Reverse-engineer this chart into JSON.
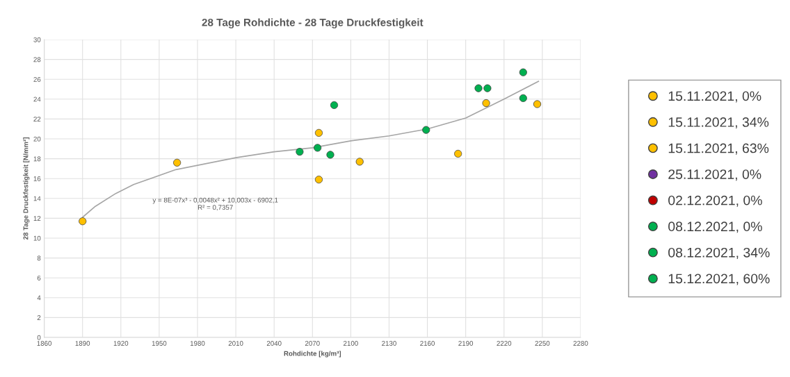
{
  "chart_data": {
    "type": "scatter",
    "title": "28 Tage Rohdichte - 28 Tage Druckfestigkeit",
    "xlabel": "Rohdichte [kg/m³]",
    "ylabel": "28 Tage Druckfestigkeit [N/mm²]",
    "xlim": [
      1860,
      2280
    ],
    "xticks": [
      1860,
      1890,
      1920,
      1950,
      1980,
      2010,
      2040,
      2070,
      2100,
      2130,
      2160,
      2190,
      2220,
      2250,
      2280
    ],
    "ylim": [
      0,
      30
    ],
    "yticks": [
      0,
      2,
      4,
      6,
      8,
      10,
      12,
      14,
      16,
      18,
      20,
      22,
      24,
      26,
      28,
      30
    ],
    "grid": true,
    "legend": "right",
    "marker": "circle",
    "annotations": [
      "y = 8E-07x³ - 0,0048x² + 10,003x - 6902,1\nR² = 0,7357"
    ],
    "series": [
      {
        "name": "15.11.2021, 0%",
        "color": "#ffc000",
        "x": [
          1890,
          1964,
          2075,
          2075,
          2107,
          2184,
          2206,
          2246
        ],
        "values": [
          11.7,
          17.6,
          20.6,
          15.9,
          17.7,
          18.5,
          23.6,
          23.5
        ]
      },
      {
        "name": "15.11.2021, 34%",
        "color": "#ffc000"
      },
      {
        "name": "15.11.2021, 63%",
        "color": "#ffc000"
      },
      {
        "name": "25.11.2021, 0%",
        "color": "#7030a0"
      },
      {
        "name": "02.12.2021, 0%",
        "color": "#c00000"
      },
      {
        "name": "08.12.2021, 0%",
        "color": "#00b050",
        "x": [
          2060,
          2074,
          2084,
          2087,
          2159,
          2200,
          2207,
          2235,
          2235
        ],
        "values": [
          18.7,
          19.1,
          18.4,
          23.4,
          20.9,
          25.1,
          25.1,
          26.7,
          24.1
        ]
      },
      {
        "name": "08.12.2021, 34%",
        "color": "#00b050"
      },
      {
        "name": "15.12.2021, 60%",
        "color": "#00b050"
      },
      {
        "type": "line",
        "color": "#a6a6a6",
        "marker": "none",
        "x": [
          1890,
          1900,
          1916,
          1930,
          1963,
          2010,
          2040,
          2070,
          2100,
          2130,
          2160,
          2190,
          2220,
          2247
        ],
        "values": [
          12.1,
          13.2,
          14.5,
          15.4,
          16.9,
          18.1,
          18.7,
          19.1,
          19.8,
          20.3,
          21.0,
          22.1,
          24.0,
          25.8
        ]
      }
    ]
  }
}
